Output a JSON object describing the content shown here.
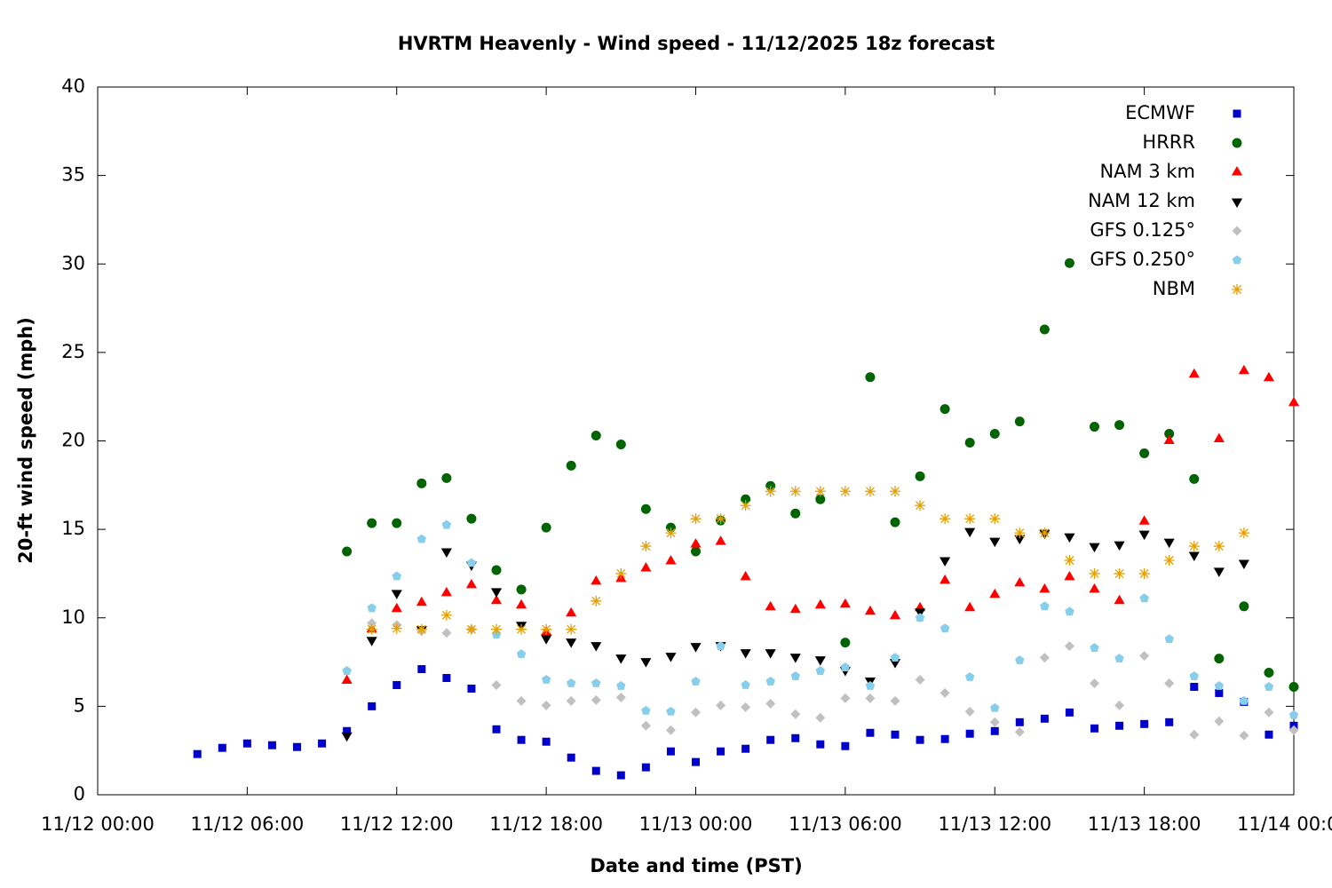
{
  "chart_data": {
    "type": "scatter",
    "title": "HVRTM Heavenly - Wind speed - 11/12/2025 18z forecast",
    "xlabel": "Date and time (PST)",
    "ylabel": "20-ft wind speed (mph)",
    "xlim": [
      0,
      48
    ],
    "ylim": [
      0,
      40
    ],
    "xticks": [
      {
        "value": 0,
        "label": "11/12 00:00"
      },
      {
        "value": 6,
        "label": "11/12 06:00"
      },
      {
        "value": 12,
        "label": "11/12 12:00"
      },
      {
        "value": 18,
        "label": "11/12 18:00"
      },
      {
        "value": 24,
        "label": "11/13 00:00"
      },
      {
        "value": 30,
        "label": "11/13 06:00"
      },
      {
        "value": 36,
        "label": "11/13 12:00"
      },
      {
        "value": 42,
        "label": "11/13 18:00"
      },
      {
        "value": 48,
        "label": "11/14 00:00"
      }
    ],
    "yticks": [
      0,
      5,
      10,
      15,
      20,
      25,
      30,
      35,
      40
    ],
    "legend": "upper right",
    "x": [
      4,
      5,
      6,
      7,
      8,
      9,
      10,
      11,
      12,
      13,
      14,
      15,
      16,
      17,
      18,
      19,
      20,
      21,
      22,
      23,
      24,
      25,
      26,
      27,
      28,
      29,
      30,
      31,
      32,
      33,
      34,
      35,
      36,
      37,
      38,
      39,
      40,
      41,
      42,
      43,
      44,
      45,
      46,
      47,
      48
    ],
    "series": [
      {
        "name": "ECMWF",
        "color": "#0000cc",
        "marker": "square",
        "values": [
          2.3,
          2.65,
          2.9,
          2.8,
          2.7,
          2.9,
          3.6,
          5,
          6.2,
          7.1,
          6.6,
          6,
          3.7,
          3.1,
          3,
          2.1,
          1.35,
          1.1,
          1.55,
          2.45,
          1.85,
          2.45,
          2.6,
          3.1,
          3.2,
          2.85,
          2.75,
          3.5,
          3.4,
          3.1,
          3.15,
          3.45,
          3.6,
          4.1,
          4.3,
          4.65,
          3.75,
          3.9,
          4,
          4.1,
          6.1,
          5.75,
          5.25,
          3.4,
          3.9
        ]
      },
      {
        "name": "HRRR",
        "color": "#006400",
        "marker": "circle",
        "values": [
          null,
          null,
          null,
          null,
          null,
          null,
          13.75,
          15.35,
          15.35,
          17.6,
          17.9,
          15.6,
          12.7,
          11.6,
          15.1,
          18.6,
          20.3,
          19.8,
          16.15,
          15.1,
          13.75,
          15.5,
          16.7,
          17.45,
          15.9,
          16.7,
          8.6,
          23.6,
          15.4,
          18,
          21.8,
          19.9,
          20.4,
          21.1,
          26.3,
          30.05,
          20.8,
          20.9,
          19.3,
          20.4,
          17.85,
          7.7,
          10.65,
          6.9,
          6.1
        ]
      },
      {
        "name": "NAM 3 km",
        "color": "#ff0000",
        "marker": "triangle-up",
        "values": [
          null,
          null,
          null,
          null,
          null,
          null,
          6.45,
          9.35,
          10.5,
          10.85,
          11.4,
          11.85,
          10.95,
          10.7,
          9.2,
          10.25,
          12.05,
          12.2,
          12.8,
          13.2,
          14.15,
          14.3,
          12.3,
          10.6,
          10.45,
          10.7,
          10.75,
          10.35,
          10.1,
          10.55,
          12.1,
          10.55,
          11.3,
          11.95,
          11.6,
          12.3,
          11.6,
          10.95,
          15.45,
          20,
          23.75,
          20.1,
          23.95,
          23.55,
          22.15
        ]
      },
      {
        "name": "NAM 12 km",
        "color": "#000000",
        "marker": "triangle-down",
        "values": [
          null,
          null,
          null,
          null,
          null,
          null,
          3.35,
          8.75,
          11.4,
          9.35,
          13.75,
          13,
          11.5,
          9.6,
          8.85,
          8.65,
          8.45,
          7.75,
          7.55,
          7.85,
          8.4,
          8.45,
          8.05,
          8.05,
          7.8,
          7.65,
          7.05,
          6.45,
          7.5,
          10.35,
          13.25,
          14.9,
          14.35,
          14.5,
          14.8,
          14.6,
          14.05,
          14.15,
          14.75,
          14.3,
          13.55,
          12.65,
          13.1,
          null,
          null
        ]
      },
      {
        "name": "GFS 0.125°",
        "color": "#c0c0c0",
        "marker": "diamond",
        "values": [
          null,
          null,
          null,
          null,
          null,
          null,
          null,
          9.7,
          9.6,
          9.25,
          9.15,
          9.35,
          6.2,
          5.3,
          5.05,
          5.3,
          5.35,
          5.5,
          3.9,
          3.65,
          4.65,
          5.05,
          4.95,
          5.15,
          4.55,
          4.35,
          5.45,
          5.45,
          5.3,
          6.5,
          5.75,
          4.7,
          4.1,
          3.55,
          7.75,
          8.4,
          6.3,
          5.05,
          7.85,
          6.3,
          3.4,
          4.15,
          3.35,
          4.65,
          3.65
        ]
      },
      {
        "name": "GFS 0.250°",
        "color": "#87ceeb",
        "marker": "pentagon",
        "values": [
          null,
          null,
          null,
          null,
          null,
          null,
          7,
          10.55,
          12.35,
          14.45,
          15.25,
          13.1,
          9.05,
          7.95,
          6.5,
          6.3,
          6.3,
          6.15,
          4.75,
          4.7,
          6.4,
          8.4,
          6.2,
          6.4,
          6.7,
          7,
          7.2,
          6.15,
          7.75,
          10,
          9.4,
          6.65,
          4.9,
          7.6,
          10.65,
          10.35,
          8.3,
          7.7,
          11.1,
          8.8,
          6.7,
          6.15,
          5.3,
          6.1,
          4.5
        ]
      },
      {
        "name": "NBM",
        "color": "#e69f00",
        "marker": "asterisk",
        "values": [
          null,
          null,
          null,
          null,
          null,
          null,
          null,
          9.35,
          9.4,
          9.35,
          10.15,
          9.35,
          9.35,
          9.35,
          9.35,
          9.35,
          10.95,
          12.5,
          14.05,
          14.8,
          15.6,
          15.6,
          16.35,
          17.15,
          17.15,
          17.15,
          17.15,
          17.15,
          17.15,
          16.35,
          15.6,
          15.6,
          15.6,
          14.8,
          14.8,
          13.25,
          12.5,
          12.5,
          12.5,
          13.25,
          14.05,
          14.05,
          14.8,
          null,
          null
        ]
      }
    ]
  }
}
